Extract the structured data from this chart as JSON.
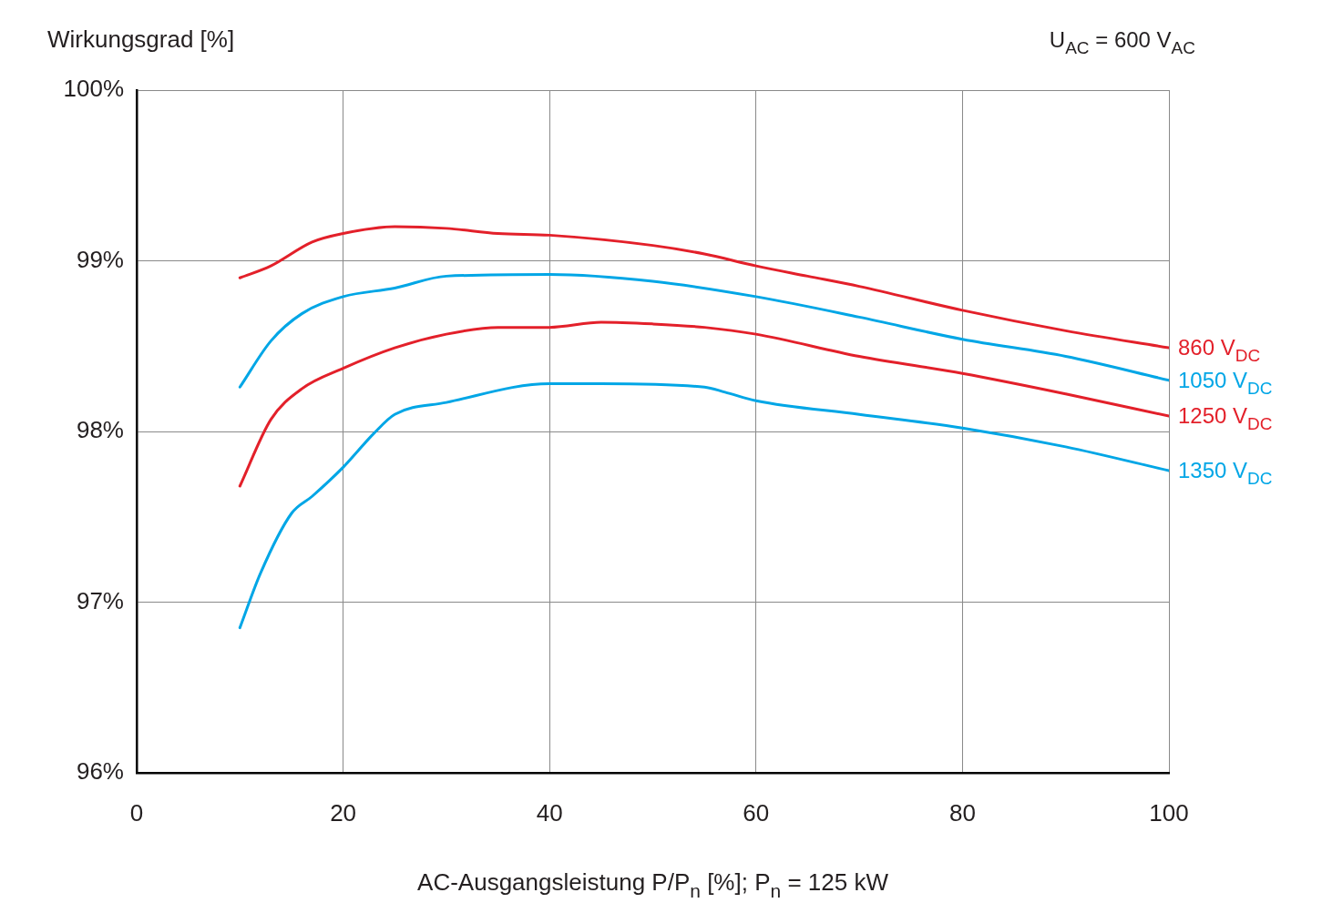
{
  "chart_data": {
    "type": "line",
    "ylabel": "Wirkungsgrad [%]",
    "xlabel": "AC-Ausgangsleistung P/P$_{n}$ [%]; P$_{n}$ = 125 kW",
    "annotations": [
      "U$_{AC}$ = 600 V$_{AC}$"
    ],
    "xlim": [
      0,
      100
    ],
    "xticks": [
      0,
      20,
      40,
      60,
      80,
      100
    ],
    "ylim": [
      96,
      100
    ],
    "yticks": [
      {
        "value": 96,
        "label": "96%"
      },
      {
        "value": 97,
        "label": "97%"
      },
      {
        "value": 98,
        "label": "98%"
      },
      {
        "value": 99,
        "label": "99%"
      },
      {
        "value": 100,
        "label": "100%"
      }
    ],
    "grid": true,
    "marker": "none",
    "line_style": "solid",
    "series": [
      {
        "name": "860 V$_{DC}$",
        "color": "#e3202a",
        "x": [
          10,
          13,
          17,
          20,
          25,
          30,
          35,
          40,
          50,
          55,
          60,
          65,
          70,
          80,
          90,
          100
        ],
        "values": [
          98.9,
          98.97,
          99.11,
          99.16,
          99.2,
          99.19,
          99.16,
          99.15,
          99.09,
          99.04,
          98.97,
          98.91,
          98.85,
          98.71,
          98.59,
          98.49
        ]
      },
      {
        "name": "1050 V$_{DC}$",
        "color": "#00a6e6",
        "x": [
          10,
          13,
          16,
          20,
          25,
          30,
          40,
          50,
          60,
          70,
          80,
          90,
          100
        ],
        "values": [
          98.26,
          98.53,
          98.69,
          98.79,
          98.84,
          98.91,
          98.92,
          98.88,
          98.79,
          98.67,
          98.54,
          98.44,
          98.3
        ]
      },
      {
        "name": "1250 V$_{DC}$",
        "color": "#e3202a",
        "x": [
          10,
          13,
          16,
          20,
          25,
          30,
          35,
          40,
          45,
          50,
          55,
          60,
          70,
          80,
          90,
          100
        ],
        "values": [
          97.68,
          98.07,
          98.25,
          98.37,
          98.49,
          98.57,
          98.61,
          98.61,
          98.64,
          98.63,
          98.61,
          98.57,
          98.44,
          98.34,
          98.22,
          98.09
        ]
      },
      {
        "name": "1350 V$_{DC}$",
        "color": "#00a6e6",
        "x": [
          10,
          12,
          15,
          17,
          20,
          23,
          25,
          30,
          40,
          45,
          55,
          57,
          60,
          70,
          80,
          90,
          100
        ],
        "values": [
          96.85,
          97.17,
          97.52,
          97.62,
          97.79,
          97.99,
          98.1,
          98.17,
          98.28,
          98.28,
          98.26,
          98.23,
          98.18,
          98.1,
          98.02,
          97.91,
          97.77
        ]
      }
    ]
  }
}
